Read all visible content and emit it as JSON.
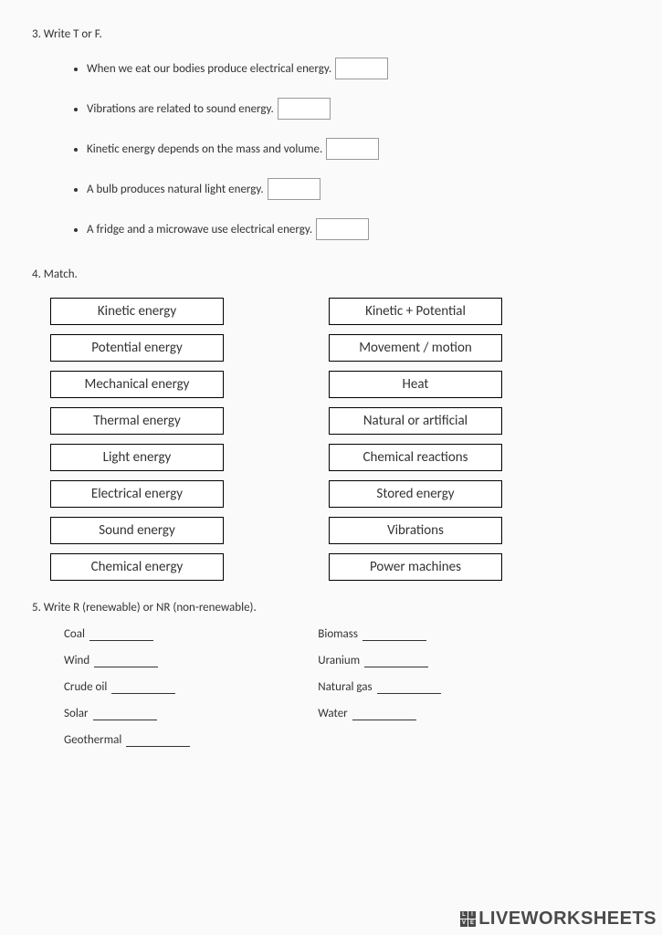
{
  "q3": {
    "title": "3. Write T or F.",
    "items": [
      "When we eat our bodies produce electrical energy.",
      "Vibrations are related to sound energy.",
      "Kinetic energy depends on the mass and volume.",
      "A bulb produces natural light energy.",
      "A fridge and a microwave use electrical energy."
    ]
  },
  "q4": {
    "title": "4. Match.",
    "left": [
      "Kinetic energy",
      "Potential energy",
      "Mechanical energy",
      "Thermal energy",
      "Light energy",
      "Electrical energy",
      "Sound energy",
      "Chemical energy"
    ],
    "right": [
      "Kinetic + Potential",
      "Movement / motion",
      "Heat",
      "Natural or artificial",
      "Chemical reactions",
      "Stored energy",
      "Vibrations",
      "Power machines"
    ]
  },
  "q5": {
    "title": "5. Write R (renewable) or NR (non-renewable).",
    "left": [
      "Coal",
      "Wind",
      "Crude oil",
      "Solar",
      "Geothermal"
    ],
    "right": [
      "Biomass",
      "Uranium",
      "Natural gas",
      "Water"
    ]
  },
  "watermark": {
    "text": "LIVEWORKSHEETS"
  }
}
